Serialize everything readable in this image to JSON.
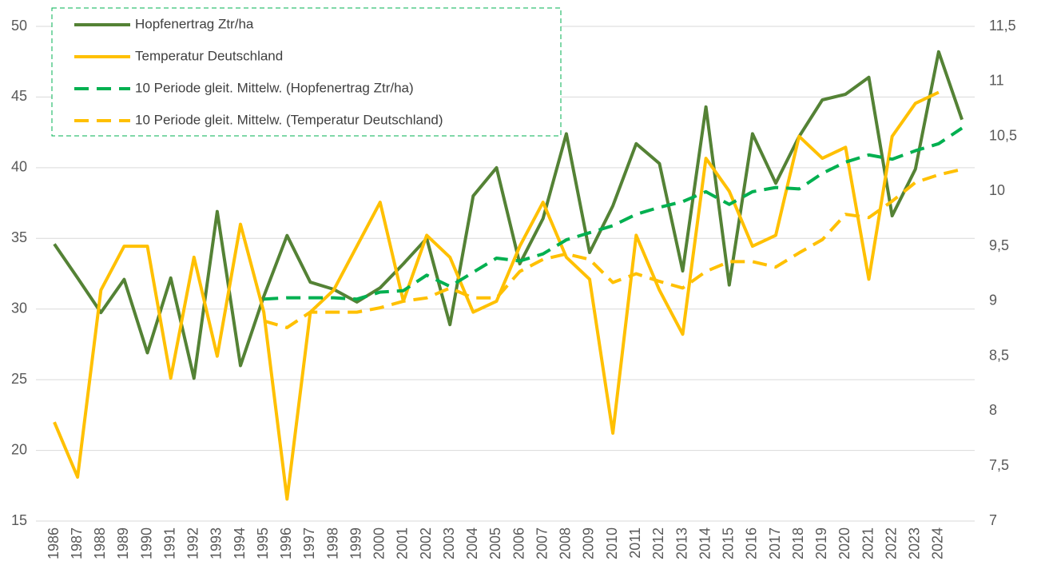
{
  "chart_data": {
    "type": "line",
    "categories": [
      "1986",
      "1987",
      "1988",
      "1989",
      "1990",
      "1991",
      "1992",
      "1993",
      "1994",
      "1995",
      "1996",
      "1997",
      "1998",
      "1999",
      "2000",
      "2001",
      "2002",
      "2003",
      "2004",
      "2005",
      "2006",
      "2007",
      "2008",
      "2009",
      "2010",
      "2011",
      "2012",
      "2013",
      "2014",
      "2015",
      "2016",
      "2017",
      "2018",
      "2019",
      "2020",
      "2021",
      "2022",
      "2023",
      "2024",
      null
    ],
    "series": [
      {
        "name": "Hopfenertrag Ztr/ha",
        "color": "#548235",
        "dashed": false,
        "values": [
          34.6,
          32.2,
          29.75,
          32.1,
          26.9,
          32.2,
          25.1,
          36.9,
          26.0,
          30.9,
          35.2,
          31.9,
          31.4,
          30.5,
          31.5,
          33.2,
          35.0,
          28.9,
          38.0,
          40.0,
          33.2,
          36.4,
          42.4,
          34.0,
          37.3,
          41.7,
          40.3,
          32.7,
          44.3,
          31.7,
          42.4,
          38.9,
          42.2,
          44.8,
          45.2,
          46.4,
          36.6,
          39.9,
          48.2,
          43.4
        ]
      },
      {
        "name": "Temperatur Deutschland",
        "color": "#ffc000",
        "dashed": false,
        "axis": "y2",
        "values": [
          7.9,
          7.4,
          9.1,
          9.5,
          9.5,
          8.3,
          9.4,
          8.5,
          9.7,
          8.9,
          7.2,
          8.9,
          9.1,
          9.5,
          9.9,
          9.0,
          9.6,
          9.4,
          8.9,
          9.0,
          9.5,
          9.9,
          9.4,
          9.2,
          7.8,
          9.6,
          9.1,
          8.7,
          10.3,
          10.0,
          9.5,
          9.6,
          10.5,
          10.3,
          10.4,
          9.2,
          10.5,
          10.8,
          10.9,
          null
        ]
      },
      {
        "name": "10 Periode gleit. Mittelw. (Hopfenertrag Ztr/ha)",
        "color": "#00b050",
        "dashed": true,
        "values": [
          null,
          null,
          null,
          null,
          null,
          null,
          null,
          null,
          null,
          30.7,
          30.8,
          30.8,
          30.8,
          30.7,
          31.2,
          31.3,
          32.4,
          31.6,
          32.6,
          33.6,
          33.4,
          33.9,
          34.9,
          35.4,
          35.9,
          36.7,
          37.2,
          37.6,
          38.3,
          37.4,
          38.3,
          38.6,
          38.5,
          39.6,
          40.4,
          40.9,
          40.6,
          41.2,
          41.7,
          42.8
        ]
      },
      {
        "name": "10 Periode gleit. Mittelw. (Temperatur Deutschland)",
        "color": "#ffc000",
        "dashed": true,
        "axis": "y2",
        "values": [
          null,
          null,
          null,
          null,
          null,
          null,
          null,
          null,
          null,
          8.82,
          8.76,
          8.9,
          8.9,
          8.9,
          8.94,
          9.0,
          9.03,
          9.12,
          9.03,
          9.03,
          9.27,
          9.38,
          9.43,
          9.38,
          9.17,
          9.25,
          9.18,
          9.12,
          9.27,
          9.36,
          9.36,
          9.31,
          9.44,
          9.56,
          9.79,
          9.76,
          9.91,
          10.08,
          10.15,
          10.2
        ]
      }
    ],
    "ylim": [
      15,
      50
    ],
    "yticks": [
      15,
      20,
      25,
      30,
      35,
      40,
      45,
      50
    ],
    "y2lim": [
      7,
      11.5
    ],
    "y2ticks": [
      7,
      {
        "value": 7.5,
        "label": "7,5"
      },
      8,
      {
        "value": 8.5,
        "label": "8,5"
      },
      9,
      {
        "value": 9.5,
        "label": "9,5"
      },
      10,
      {
        "value": 10.5,
        "label": "10,5"
      },
      11,
      {
        "value": 11.5,
        "label": "11,5"
      }
    ],
    "grid": true,
    "legend": "top-left"
  }
}
